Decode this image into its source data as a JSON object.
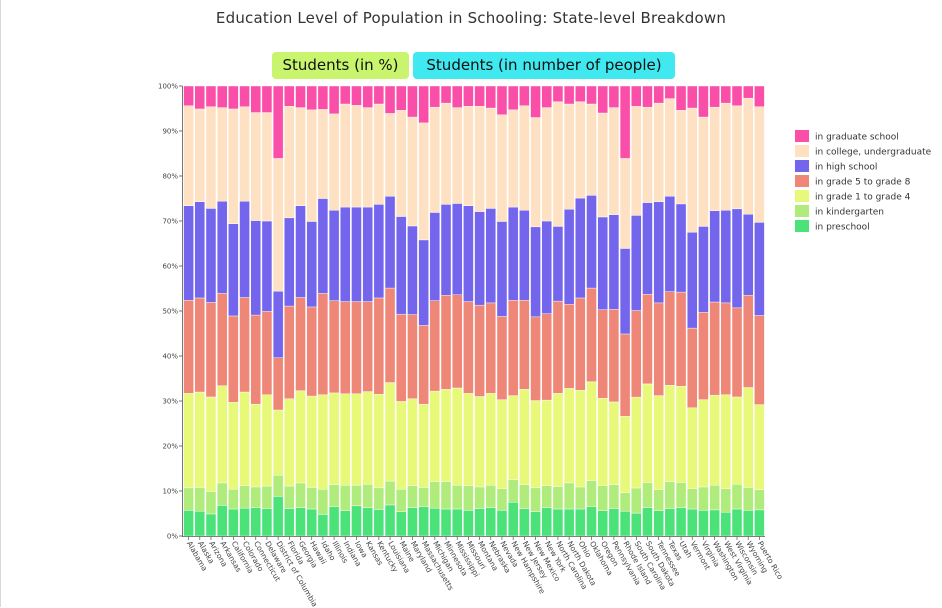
{
  "title": "Education Level of Population in Schooling: State-level Breakdown",
  "tabs": {
    "percent_label": "Students (in %)",
    "number_label": "Students (in number of people)"
  },
  "chart_data": {
    "type": "bar",
    "stacked": true,
    "normalized": true,
    "title": "Education Level of Population in Schooling: State-level Breakdown",
    "xlabel": "",
    "ylabel": "",
    "ylim": [
      0,
      100
    ],
    "yticks": [
      "0%",
      "10%",
      "20%",
      "30%",
      "40%",
      "50%",
      "60%",
      "70%",
      "80%",
      "90%",
      "100%"
    ],
    "legend_position": "right",
    "grid": false,
    "categories": [
      "Alabama",
      "Alaska",
      "Arizona",
      "Arkansas",
      "California",
      "Colorado",
      "Connecticut",
      "Delaware",
      "District of Columbia",
      "Florida",
      "Georgia",
      "Hawaii",
      "Idaho",
      "Illinois",
      "Indiana",
      "Iowa",
      "Kansas",
      "Kentucky",
      "Louisiana",
      "Maine",
      "Maryland",
      "Massachusetts",
      "Michigan",
      "Minnesota",
      "Mississippi",
      "Missouri",
      "Montana",
      "Nebraska",
      "Nevada",
      "New Hampshire",
      "New Jersey",
      "New Mexico",
      "New York",
      "North Carolina",
      "North Dakota",
      "Ohio",
      "Oklahoma",
      "Oregon",
      "Pennsylvania",
      "Rhode Island",
      "South Carolina",
      "South Dakota",
      "Tennessee",
      "Texas",
      "Utah",
      "Vermont",
      "Virginia",
      "Washington",
      "West Virginia",
      "Wisconsin",
      "Wyoming",
      "Puerto Rico"
    ],
    "series": [
      {
        "name": "in preschool",
        "color": "#4be27a",
        "values": [
          5.7,
          5.5,
          4.9,
          6.8,
          6.0,
          6.2,
          6.3,
          6.1,
          8.8,
          6.1,
          6.3,
          6.0,
          4.8,
          6.5,
          5.6,
          6.7,
          6.3,
          5.9,
          6.9,
          5.4,
          6.3,
          6.5,
          6.2,
          6.0,
          6.0,
          5.7,
          6.1,
          6.3,
          5.7,
          7.5,
          6.1,
          5.4,
          6.3,
          6.0,
          6.0,
          6.0,
          6.5,
          5.6,
          6.1,
          5.5,
          5.3,
          6.3,
          5.6,
          6.1,
          6.3,
          6.0,
          5.7,
          5.8,
          5.3,
          6.0,
          5.7,
          5.8
        ]
      },
      {
        "name": "in kindergarten",
        "color": "#b0ec7c",
        "values": [
          5.0,
          5.3,
          5.0,
          5.0,
          4.4,
          5.0,
          4.6,
          5.0,
          4.7,
          5.0,
          5.5,
          4.8,
          5.6,
          4.9,
          5.7,
          4.6,
          5.2,
          4.8,
          5.3,
          5.0,
          4.9,
          4.3,
          5.9,
          6.1,
          5.3,
          5.5,
          4.8,
          5.0,
          4.8,
          5.0,
          5.3,
          5.3,
          4.9,
          5.0,
          5.8,
          4.9,
          5.8,
          5.6,
          5.3,
          4.1,
          5.8,
          5.6,
          4.7,
          6.0,
          5.6,
          4.5,
          5.2,
          5.5,
          5.2,
          5.5,
          5.1,
          4.5
        ]
      },
      {
        "name": "in grade 1 to grade 4",
        "color": "#e8f97a",
        "values": [
          21.0,
          21.2,
          21.0,
          21.6,
          19.3,
          20.8,
          18.4,
          20.3,
          14.5,
          19.4,
          20.5,
          20.3,
          21.0,
          20.4,
          20.3,
          20.3,
          20.6,
          20.8,
          21.9,
          19.5,
          19.3,
          18.5,
          20.1,
          20.5,
          21.6,
          20.5,
          20.1,
          20.4,
          19.8,
          18.7,
          21.2,
          19.4,
          19.0,
          20.7,
          21.0,
          21.5,
          22.0,
          19.4,
          18.4,
          17.0,
          21.0,
          21.9,
          20.9,
          21.4,
          21.4,
          18.0,
          19.4,
          20.0,
          20.9,
          19.4,
          22.2,
          18.9
        ]
      },
      {
        "name": "in grade 5 to grade 8",
        "color": "#ee8778",
        "values": [
          20.7,
          20.9,
          21.0,
          20.5,
          19.2,
          21.0,
          19.8,
          18.5,
          11.6,
          20.6,
          20.7,
          19.8,
          22.5,
          20.5,
          20.5,
          20.5,
          20.0,
          21.4,
          21.0,
          19.4,
          18.7,
          17.5,
          20.1,
          20.9,
          20.7,
          20.4,
          20.3,
          20.1,
          18.5,
          21.2,
          19.8,
          18.6,
          19.2,
          20.5,
          18.7,
          20.5,
          20.8,
          19.7,
          20.6,
          18.3,
          20.0,
          19.9,
          20.6,
          20.8,
          20.9,
          17.7,
          19.4,
          20.7,
          20.4,
          19.8,
          20.5,
          19.8
        ]
      },
      {
        "name": "in high school",
        "color": "#7466ec",
        "values": [
          21.0,
          21.4,
          20.9,
          20.5,
          20.5,
          21.4,
          21.0,
          20.1,
          14.8,
          19.6,
          20.4,
          19.0,
          21.1,
          20.1,
          21.0,
          21.0,
          21.0,
          20.8,
          20.4,
          21.7,
          19.7,
          19.0,
          19.6,
          20.2,
          20.3,
          21.3,
          20.8,
          21.0,
          21.1,
          20.7,
          20.0,
          20.0,
          20.6,
          16.6,
          21.1,
          22.2,
          20.6,
          20.6,
          21.0,
          19.0,
          22.0,
          20.4,
          22.5,
          21.2,
          19.6,
          21.3,
          19.1,
          20.3,
          20.6,
          22.0,
          18.0,
          20.7
        ]
      },
      {
        "name": "in college, undergraduate",
        "color": "#fde1c2",
        "values": [
          22.2,
          20.6,
          22.6,
          20.8,
          25.5,
          21.0,
          24.0,
          24.1,
          29.5,
          24.8,
          21.8,
          24.8,
          19.8,
          21.4,
          22.9,
          22.6,
          22.1,
          22.3,
          18.4,
          23.6,
          24.2,
          26.0,
          23.4,
          22.5,
          21.3,
          22.1,
          23.4,
          22.3,
          23.7,
          21.6,
          23.2,
          24.3,
          25.2,
          27.7,
          23.4,
          21.4,
          20.3,
          23.1,
          23.8,
          20.0,
          25.2,
          21.2,
          21.9,
          21.7,
          20.8,
          27.6,
          24.3,
          23.0,
          23.8,
          22.9,
          25.8,
          25.7
        ]
      },
      {
        "name": "in graduate school",
        "color": "#f94fa8",
        "values": [
          4.4,
          5.1,
          4.6,
          4.8,
          5.1,
          4.6,
          5.9,
          5.9,
          16.1,
          4.5,
          4.8,
          5.3,
          5.2,
          6.2,
          4.0,
          4.3,
          4.8,
          4.0,
          6.1,
          5.4,
          6.9,
          8.2,
          4.7,
          3.8,
          4.8,
          4.5,
          4.5,
          4.9,
          6.4,
          5.3,
          4.4,
          7.0,
          4.8,
          3.5,
          4.0,
          3.5,
          4.0,
          6.0,
          4.8,
          16.1,
          4.7,
          4.7,
          3.8,
          2.8,
          5.4,
          4.9,
          6.9,
          4.7,
          3.8,
          4.4,
          2.7,
          4.6
        ]
      }
    ]
  }
}
